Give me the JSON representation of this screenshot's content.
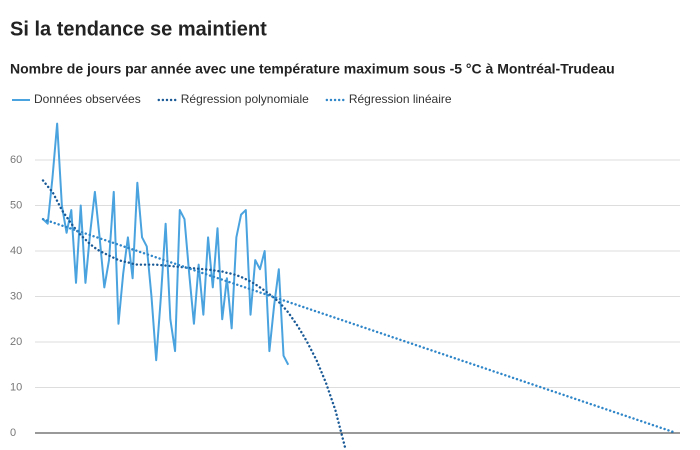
{
  "chart_data": {
    "type": "line",
    "title": "Si la tendance se maintient",
    "subtitle": "Nombre de jours par année avec une température maximum sous -5 °C à Montréal-Trudeau",
    "categories": [
      null,
      null,
      null,
      null,
      null,
      null,
      null,
      null,
      null,
      null,
      null,
      null,
      null,
      null,
      null,
      null,
      null,
      null,
      null,
      null,
      null,
      null,
      null,
      null,
      null,
      null,
      null,
      null,
      null,
      null,
      null,
      null,
      null,
      null,
      null,
      null,
      null,
      null,
      null,
      null,
      null,
      null,
      null,
      null,
      null,
      null,
      null,
      null,
      null,
      null,
      null,
      null,
      null,
      null,
      null,
      null,
      null,
      null,
      null,
      null,
      null,
      null,
      null,
      null,
      null,
      null,
      null,
      null,
      null,
      null,
      null,
      null,
      null,
      null,
      null,
      null,
      null,
      null,
      null,
      null,
      null,
      null,
      null,
      null,
      null,
      null,
      null,
      null,
      null,
      null,
      null,
      null,
      null,
      null,
      null,
      null,
      null,
      null,
      null,
      null,
      null,
      null,
      null,
      null,
      null,
      null,
      null,
      null,
      null,
      null,
      null,
      null,
      null,
      null,
      null,
      null,
      null,
      null,
      null,
      null,
      null,
      null,
      null,
      null,
      null,
      null,
      null,
      null,
      null,
      null,
      null,
      null,
      null,
      null,
      null
    ],
    "series": [
      {
        "name": "Données observées",
        "color": "#4aa3df",
        "style": "solid",
        "values": [
          47,
          46,
          56,
          68,
          50,
          44,
          49,
          33,
          50,
          33,
          44,
          53,
          43,
          32,
          38,
          53,
          24,
          35,
          43,
          34,
          55,
          43,
          41,
          30,
          16,
          30,
          46,
          25,
          18,
          49,
          47,
          35,
          24,
          37,
          26,
          43,
          32,
          45,
          25,
          34,
          23,
          43,
          48,
          49,
          26,
          38,
          36,
          40,
          18,
          28,
          36,
          17,
          15,
          null,
          null,
          null,
          null,
          null,
          null,
          null,
          null,
          null,
          null,
          null,
          null,
          null,
          null,
          null,
          null,
          null,
          null,
          null,
          null,
          null,
          null,
          null,
          null,
          null,
          null,
          null,
          null,
          null,
          null,
          null,
          null,
          null,
          null,
          null,
          null,
          null,
          null,
          null,
          null,
          null,
          null,
          null,
          null,
          null,
          null,
          null,
          null,
          null,
          null,
          null,
          null,
          null,
          null,
          null,
          null,
          null,
          null,
          null,
          null,
          null,
          null,
          null,
          null,
          null,
          null,
          null,
          null,
          null,
          null,
          null,
          null,
          null,
          null,
          null,
          null,
          null,
          null,
          null,
          null,
          null,
          null
        ]
      },
      {
        "name": "Régression polynomiale",
        "color": "#1a5a96",
        "style": "dotted",
        "values": [
          55.5,
          54.2,
          53,
          51,
          49,
          47.5,
          46,
          44.7,
          43.5,
          42.5,
          41.5,
          40.7,
          40,
          39.5,
          39,
          38.5,
          38,
          37.7,
          37.5,
          37.2,
          37,
          37,
          37,
          37,
          37,
          36.9,
          36.8,
          36.7,
          36.6,
          36.5,
          36.4,
          36.3,
          36.2,
          36.1,
          36,
          35.9,
          35.8,
          35.6,
          35.5,
          35.2,
          35,
          34.7,
          34.3,
          33.8,
          33.3,
          32.7,
          32,
          31.3,
          30.5,
          29.7,
          28.8,
          27.7,
          26.5,
          25,
          23.5,
          21.8,
          20,
          18,
          16,
          13.5,
          11,
          8,
          5,
          1,
          -3,
          null,
          null,
          null,
          null,
          null,
          null,
          null,
          null,
          null,
          null,
          null,
          null,
          null,
          null,
          null,
          null,
          null,
          null,
          null,
          null,
          null,
          null,
          null,
          null,
          null,
          null,
          null,
          null,
          null,
          null,
          null,
          null,
          null,
          null,
          null,
          null,
          null,
          null,
          null,
          null,
          null,
          null,
          null,
          null,
          null,
          null,
          null,
          null,
          null,
          null,
          null,
          null,
          null,
          null,
          null,
          null,
          null,
          null,
          null,
          null,
          null,
          null,
          null,
          null,
          null,
          null,
          null,
          null,
          null,
          null
        ]
      },
      {
        "name": "Régression linéaire",
        "color": "#2f86c8",
        "style": "dotted",
        "values": [
          47,
          46.65,
          46.3,
          45.95,
          45.6,
          45.25,
          44.9,
          44.55,
          44.2,
          43.85,
          43.5,
          43.15,
          42.8,
          42.45,
          42.1,
          41.75,
          41.4,
          41.05,
          40.7,
          40.35,
          40,
          39.65,
          39.3,
          38.95,
          38.6,
          38.25,
          37.9,
          37.55,
          37.2,
          36.85,
          36.5,
          36.15,
          35.8,
          35.45,
          35.1,
          34.75,
          34.4,
          34.05,
          33.7,
          33.35,
          33,
          32.65,
          32.3,
          31.95,
          31.6,
          31.25,
          30.9,
          30.55,
          30.2,
          29.85,
          29.5,
          29.15,
          28.8,
          28.45,
          28.1,
          27.75,
          27.4,
          27.05,
          26.7,
          26.35,
          26,
          25.65,
          25.3,
          24.95,
          24.6,
          24.25,
          23.9,
          23.55,
          23.2,
          22.85,
          22.5,
          22.15,
          21.8,
          21.45,
          21.1,
          20.75,
          20.4,
          20.05,
          19.7,
          19.35,
          19,
          18.65,
          18.3,
          17.95,
          17.6,
          17.25,
          16.9,
          16.55,
          16.2,
          15.85,
          15.5,
          15.15,
          14.8,
          14.45,
          14.1,
          13.75,
          13.4,
          13.05,
          12.7,
          12.35,
          12,
          11.65,
          11.3,
          10.95,
          10.6,
          10.25,
          9.9,
          9.55,
          9.2,
          8.85,
          8.5,
          8.15,
          7.8,
          7.45,
          7.1,
          6.75,
          6.4,
          6.05,
          5.7,
          5.35,
          5,
          4.65,
          4.3,
          3.95,
          3.6,
          3.25,
          2.9,
          2.55,
          2.2,
          1.85,
          1.5,
          1.15,
          0.8,
          0.45,
          0.1
        ]
      }
    ],
    "ylim": [
      -4,
      69
    ],
    "yticks": [
      0,
      10,
      20,
      30,
      40,
      50,
      60
    ],
    "grid": true,
    "legend": "top"
  }
}
